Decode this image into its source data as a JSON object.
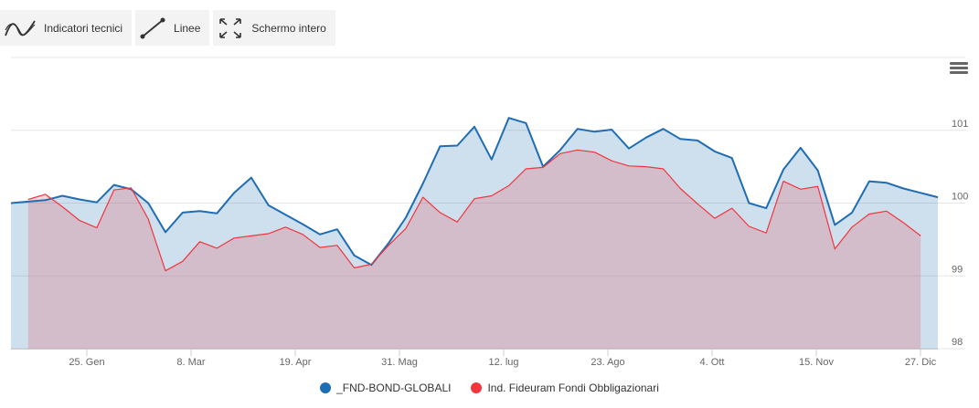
{
  "toolbar": {
    "indicators_label": "Indicatori tecnici",
    "lines_label": "Linee",
    "fullscreen_label": "Schermo intero"
  },
  "chart_data": {
    "type": "area",
    "x_tick_labels": [
      "25. Gen",
      "8. Mar",
      "19. Apr",
      "31. Mag",
      "12. lug",
      "23. Ago",
      "4. Ott",
      "15. Nov",
      "27. Dic"
    ],
    "y_tick_labels": [
      "98",
      "99",
      "100",
      "101"
    ],
    "ylim": [
      98,
      102
    ],
    "grid": true,
    "legend": "bottom-center",
    "series": [
      {
        "name": "_FND-BOND-GLOBALI",
        "color": "#1f6db3",
        "values": [
          100.0,
          100.02,
          100.04,
          100.1,
          100.05,
          100.01,
          100.25,
          100.19,
          100.0,
          99.6,
          99.87,
          99.89,
          99.86,
          100.14,
          100.35,
          99.97,
          99.84,
          99.71,
          99.57,
          99.64,
          99.28,
          99.15,
          99.45,
          99.8,
          100.27,
          100.78,
          100.79,
          101.05,
          100.6,
          101.17,
          101.1,
          100.5,
          100.73,
          101.02,
          100.98,
          101.01,
          100.75,
          100.9,
          101.02,
          100.88,
          100.86,
          100.71,
          100.62,
          100.0,
          99.93,
          100.46,
          100.76,
          100.45,
          99.7,
          99.87,
          100.3,
          100.28,
          100.2,
          100.14,
          100.08
        ]
      },
      {
        "name": "Ind. Fideuram Fondi Obbligazionari",
        "color": "#f2353c",
        "values": [
          null,
          100.05,
          100.12,
          99.95,
          99.76,
          99.66,
          100.18,
          100.21,
          99.78,
          99.07,
          99.2,
          99.47,
          99.38,
          99.52,
          99.55,
          99.58,
          99.67,
          99.57,
          99.39,
          99.42,
          99.11,
          99.16,
          99.42,
          99.65,
          100.08,
          99.87,
          99.74,
          100.06,
          100.1,
          100.24,
          100.47,
          100.49,
          100.68,
          100.73,
          100.7,
          100.58,
          100.51,
          100.5,
          100.47,
          100.2,
          99.99,
          99.79,
          99.93,
          99.68,
          99.59,
          100.3,
          100.19,
          100.23,
          99.37,
          99.67,
          99.85,
          99.89,
          99.73,
          99.55,
          null
        ]
      }
    ]
  },
  "legend": {
    "items": [
      {
        "label": "_FND-BOND-GLOBALI",
        "color": "#1f6db3"
      },
      {
        "label": "Ind. Fideuram Fondi Obbligazionari",
        "color": "#f2353c"
      }
    ]
  }
}
